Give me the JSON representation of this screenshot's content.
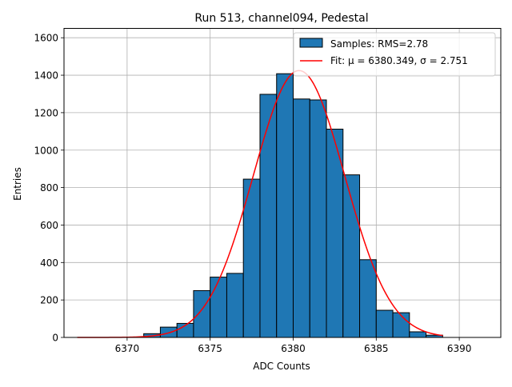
{
  "chart_data": {
    "type": "bar",
    "title": "Run 513, channel094, Pedestal",
    "xlabel": "ADC Counts",
    "ylabel": "Entries",
    "xlim": [
      6366.2,
      6392.5
    ],
    "ylim": [
      0,
      1650
    ],
    "grid": true,
    "legend_position": "top-right",
    "xticks": [
      6370,
      6375,
      6380,
      6385,
      6390
    ],
    "yticks": [
      0,
      200,
      400,
      600,
      800,
      1000,
      1200,
      1400,
      1600
    ],
    "histogram": {
      "name": "Samples: RMS=2.78",
      "bin_edges": [
        6371,
        6372,
        6373,
        6374,
        6375,
        6376,
        6377,
        6378,
        6379,
        6380,
        6381,
        6382,
        6383,
        6384,
        6385,
        6386,
        6387,
        6388,
        6389
      ],
      "counts": [
        20,
        55,
        75,
        250,
        322,
        342,
        845,
        1298,
        1408,
        1273,
        1268,
        1112,
        868,
        415,
        145,
        132,
        30,
        12
      ],
      "color": "#1f77b4",
      "edgecolor": "#000000"
    },
    "fit": {
      "name_prefix": "Fit: ",
      "mu_label": "μ = 6380.349",
      "sigma_label": "σ = 2.751",
      "mu": 6380.349,
      "sigma": 2.751,
      "amplitude": 1425,
      "x_range": [
        6367,
        6389
      ],
      "color": "#ff0000"
    }
  }
}
